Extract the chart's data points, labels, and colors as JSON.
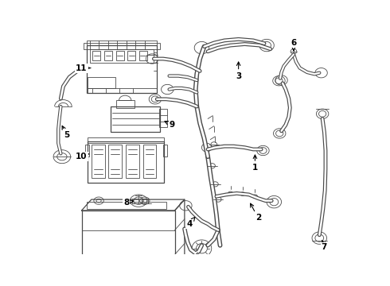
{
  "bg_color": "#ffffff",
  "line_color": "#4a4a4a",
  "fig_width": 4.9,
  "fig_height": 3.6,
  "dpi": 100,
  "lw_thin": 0.6,
  "lw_med": 0.9,
  "lw_thick": 1.4,
  "lw_cable": 1.1,
  "label_fontsize": 7.5
}
